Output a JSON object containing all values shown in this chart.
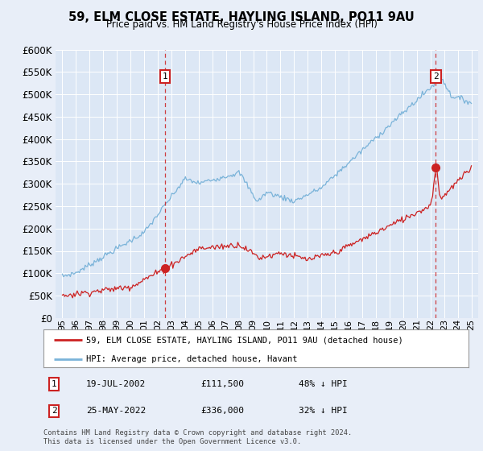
{
  "title": "59, ELM CLOSE ESTATE, HAYLING ISLAND, PO11 9AU",
  "subtitle": "Price paid vs. HM Land Registry's House Price Index (HPI)",
  "ylim": [
    0,
    600000
  ],
  "yticks": [
    0,
    50000,
    100000,
    150000,
    200000,
    250000,
    300000,
    350000,
    400000,
    450000,
    500000,
    550000,
    600000
  ],
  "xlim_start": 1994.5,
  "xlim_end": 2025.5,
  "background_color": "#e8eef8",
  "plot_bg": "#dce7f5",
  "grid_color": "#ffffff",
  "hpi_color": "#7ab3d9",
  "price_color": "#cc2222",
  "sale1_date": 2002.54,
  "sale1_price": 111500,
  "sale2_date": 2022.4,
  "sale2_price": 336000,
  "legend_address": "59, ELM CLOSE ESTATE, HAYLING ISLAND, PO11 9AU (detached house)",
  "legend_hpi": "HPI: Average price, detached house, Havant",
  "note1_label": "1",
  "note1_date": "19-JUL-2002",
  "note1_price": "£111,500",
  "note1_pct": "48% ↓ HPI",
  "note2_label": "2",
  "note2_date": "25-MAY-2022",
  "note2_price": "£336,000",
  "note2_pct": "32% ↓ HPI",
  "footer": "Contains HM Land Registry data © Crown copyright and database right 2024.\nThis data is licensed under the Open Government Licence v3.0."
}
